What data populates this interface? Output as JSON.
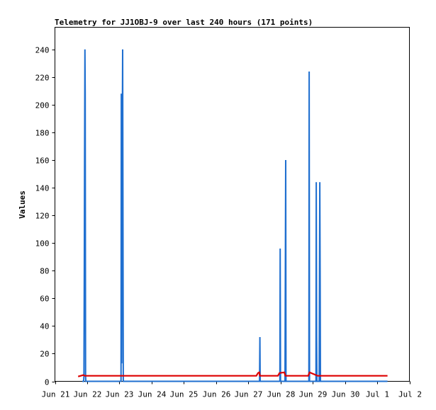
{
  "chart_data": {
    "type": "line",
    "title": "Telemetry for JJ1OBJ-9 over last 240 hours (171 points)",
    "xlabel": "",
    "ylabel": "Values",
    "x_tick_labels": [
      "Jun 21",
      "Jun 22",
      "Jun 23",
      "Jun 24",
      "Jun 25",
      "Jun 26",
      "Jun 27",
      "Jun 28",
      "Jun 29",
      "Jun 30",
      "Jul 1",
      "Jul 2"
    ],
    "xlim_days": [
      21,
      32
    ],
    "ylim": [
      0,
      256
    ],
    "y_ticks": [
      0,
      20,
      40,
      60,
      80,
      100,
      120,
      140,
      160,
      180,
      200,
      220,
      240
    ],
    "grid": false,
    "colors": {
      "series_blue": "#1f6fd0",
      "series_red": "#dd0000",
      "axis": "#000000"
    },
    "series": [
      {
        "color": "#1f6fd0",
        "points": [
          [
            21.85,
            0
          ],
          [
            21.87,
            0
          ],
          [
            21.88,
            0
          ],
          [
            21.89,
            0
          ],
          [
            21.9,
            4
          ],
          [
            21.91,
            80
          ],
          [
            21.92,
            160
          ],
          [
            21.93,
            240
          ],
          [
            21.94,
            208
          ],
          [
            21.95,
            4
          ],
          [
            21.96,
            0
          ],
          [
            23.05,
            0
          ],
          [
            23.06,
            208
          ],
          [
            23.07,
            13
          ],
          [
            23.08,
            120
          ],
          [
            23.1,
            240
          ],
          [
            23.12,
            0
          ],
          [
            27.35,
            0
          ],
          [
            27.36,
            32
          ],
          [
            27.37,
            0
          ],
          [
            27.98,
            0
          ],
          [
            27.99,
            96
          ],
          [
            28.0,
            0
          ],
          [
            28.14,
            0
          ],
          [
            28.15,
            80
          ],
          [
            28.16,
            160
          ],
          [
            28.17,
            0
          ],
          [
            28.88,
            0
          ],
          [
            28.89,
            224
          ],
          [
            28.9,
            0
          ],
          [
            29.1,
            0
          ],
          [
            29.11,
            144
          ],
          [
            29.12,
            32
          ],
          [
            29.13,
            0
          ],
          [
            29.2,
            0
          ],
          [
            29.22,
            144
          ],
          [
            29.23,
            72
          ],
          [
            29.24,
            0
          ],
          [
            30.3,
            0
          ],
          [
            31.32,
            0
          ]
        ]
      },
      {
        "color": "#dd0000",
        "points": [
          [
            21.72,
            3.5
          ],
          [
            21.8,
            4
          ],
          [
            21.88,
            4.5
          ],
          [
            21.93,
            4
          ],
          [
            22.5,
            4
          ],
          [
            23.5,
            4
          ],
          [
            25.0,
            4
          ],
          [
            26.5,
            4
          ],
          [
            27.25,
            4
          ],
          [
            27.3,
            6
          ],
          [
            27.34,
            6.5
          ],
          [
            27.36,
            4
          ],
          [
            27.6,
            4
          ],
          [
            27.92,
            4
          ],
          [
            27.97,
            6
          ],
          [
            28.12,
            6.5
          ],
          [
            28.15,
            4
          ],
          [
            28.4,
            4
          ],
          [
            28.86,
            4
          ],
          [
            28.9,
            6.5
          ],
          [
            29.0,
            5.5
          ],
          [
            29.15,
            4
          ],
          [
            29.6,
            4
          ],
          [
            30.5,
            4
          ],
          [
            31.32,
            4
          ]
        ]
      }
    ]
  }
}
